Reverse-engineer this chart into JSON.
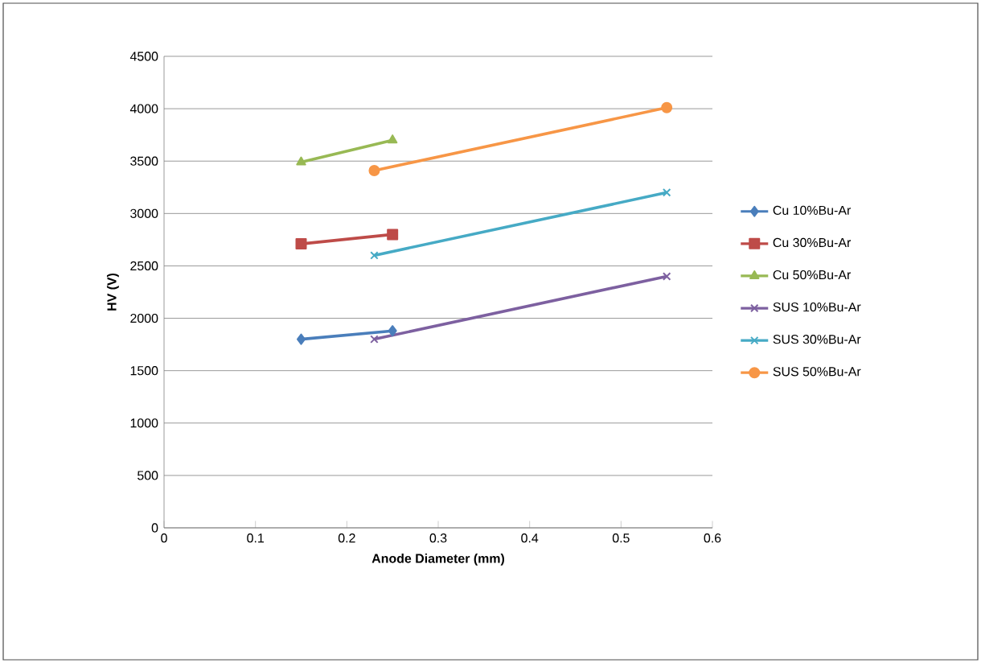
{
  "chart_data": {
    "type": "line",
    "xlabel": "Anode Diameter (mm)",
    "ylabel": "HV (V)",
    "xlim": [
      0,
      0.6
    ],
    "xticks": [
      0,
      0.1,
      0.2,
      0.3,
      0.4,
      0.5,
      0.6
    ],
    "ylim": [
      0,
      4500
    ],
    "yticks": [
      0,
      500,
      1000,
      1500,
      2000,
      2500,
      3000,
      3500,
      4000,
      4500
    ],
    "grid": "y",
    "legend": "right",
    "series": [
      {
        "name": "Cu  10%Bu-Ar",
        "color": "#4a7ebb",
        "marker": "diamond",
        "x": [
          0.15,
          0.25
        ],
        "values": [
          1800,
          1880
        ]
      },
      {
        "name": "Cu  30%Bu-Ar",
        "color": "#be4b48",
        "marker": "square",
        "x": [
          0.15,
          0.25
        ],
        "values": [
          2710,
          2800
        ]
      },
      {
        "name": "Cu  50%Bu-Ar",
        "color": "#98b954",
        "marker": "triangle",
        "x": [
          0.15,
          0.25
        ],
        "values": [
          3490,
          3700
        ]
      },
      {
        "name": "SUS 10%Bu-Ar",
        "color": "#7d60a0",
        "marker": "cross",
        "x": [
          0.23,
          0.55
        ],
        "values": [
          1800,
          2400
        ]
      },
      {
        "name": "SUS 30%Bu-Ar",
        "color": "#46aac5",
        "marker": "cross",
        "x": [
          0.23,
          0.55
        ],
        "values": [
          2600,
          3200
        ]
      },
      {
        "name": "SUS 50%Bu-Ar",
        "color": "#f79646",
        "marker": "circle",
        "x": [
          0.23,
          0.55
        ],
        "values": [
          3410,
          4010
        ]
      }
    ]
  }
}
